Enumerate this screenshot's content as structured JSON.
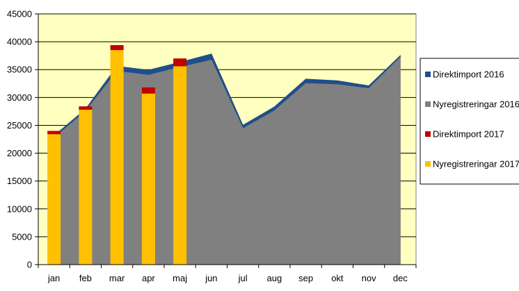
{
  "chart_data": {
    "type": "area",
    "categories": [
      "jan",
      "feb",
      "mar",
      "apr",
      "maj",
      "jun",
      "jul",
      "aug",
      "sep",
      "okt",
      "nov",
      "dec"
    ],
    "ylim": [
      0,
      45000
    ],
    "yticks": [
      0,
      5000,
      10000,
      15000,
      20000,
      25000,
      30000,
      35000,
      40000,
      45000
    ],
    "grid": true,
    "legend_position": "right",
    "series": [
      {
        "name": "Direktimport 2016",
        "kind": "stacked-area",
        "color": "#1f4e8c",
        "values": [
          400,
          400,
          900,
          900,
          900,
          1100,
          600,
          700,
          800,
          700,
          500,
          300
        ]
      },
      {
        "name": "Nyregistreringar 2016",
        "kind": "stacked-area",
        "color": "#808080",
        "values": [
          22700,
          27500,
          34700,
          34000,
          35400,
          36700,
          24400,
          27600,
          32500,
          32300,
          31600,
          37200
        ]
      },
      {
        "name": "Direktimport 2017",
        "kind": "stacked-bar",
        "color": "#c00000",
        "values": [
          600,
          600,
          900,
          1100,
          1400,
          null,
          null,
          null,
          null,
          null,
          null,
          null
        ]
      },
      {
        "name": "Nyregistreringar 2017",
        "kind": "stacked-bar",
        "color": "#ffc000",
        "values": [
          23400,
          27800,
          38500,
          30700,
          35600,
          null,
          null,
          null,
          null,
          null,
          null,
          null
        ]
      }
    ]
  },
  "legend": {
    "items": [
      {
        "label": "Direktimport 2016",
        "color": "#1f4e8c"
      },
      {
        "label": "Nyregistreringar 2016",
        "color": "#808080"
      },
      {
        "label": "Direktimport 2017",
        "color": "#c00000"
      },
      {
        "label": "Nyregistreringar 2017",
        "color": "#ffc000"
      }
    ]
  },
  "colors": {
    "plot_background": "#ffffc0",
    "gridline": "#000000"
  }
}
